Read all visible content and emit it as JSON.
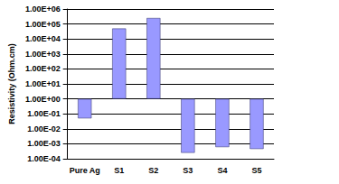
{
  "chart_data": {
    "type": "bar",
    "y_label": "Resistivity (Ohm.cm)",
    "categories": [
      "Pure Ag",
      "S1",
      "S2",
      "S3",
      "S4",
      "S5"
    ],
    "values": [
      0.05,
      50000,
      250000,
      0.00025,
      0.0006,
      0.00045
    ],
    "color": "#9999ff",
    "log": "y",
    "ylim": [
      0.0001,
      1000000
    ],
    "yticks": [
      {
        "value": 0.0001,
        "label": "1.00E-04"
      },
      {
        "value": 0.001,
        "label": "1.00E-03"
      },
      {
        "value": 0.01,
        "label": "1.00E-02"
      },
      {
        "value": 0.1,
        "label": "1.00E-01"
      },
      {
        "value": 1,
        "label": "1.00E+00"
      },
      {
        "value": 10,
        "label": "1.00E+01"
      },
      {
        "value": 100,
        "label": "1.00E+02"
      },
      {
        "value": 1000,
        "label": "1.00E+03"
      },
      {
        "value": 10000,
        "label": "1.00E+04"
      },
      {
        "value": 100000,
        "label": "1.00E+05"
      },
      {
        "value": 1000000,
        "label": "1.00E+06"
      }
    ],
    "grid": true
  }
}
